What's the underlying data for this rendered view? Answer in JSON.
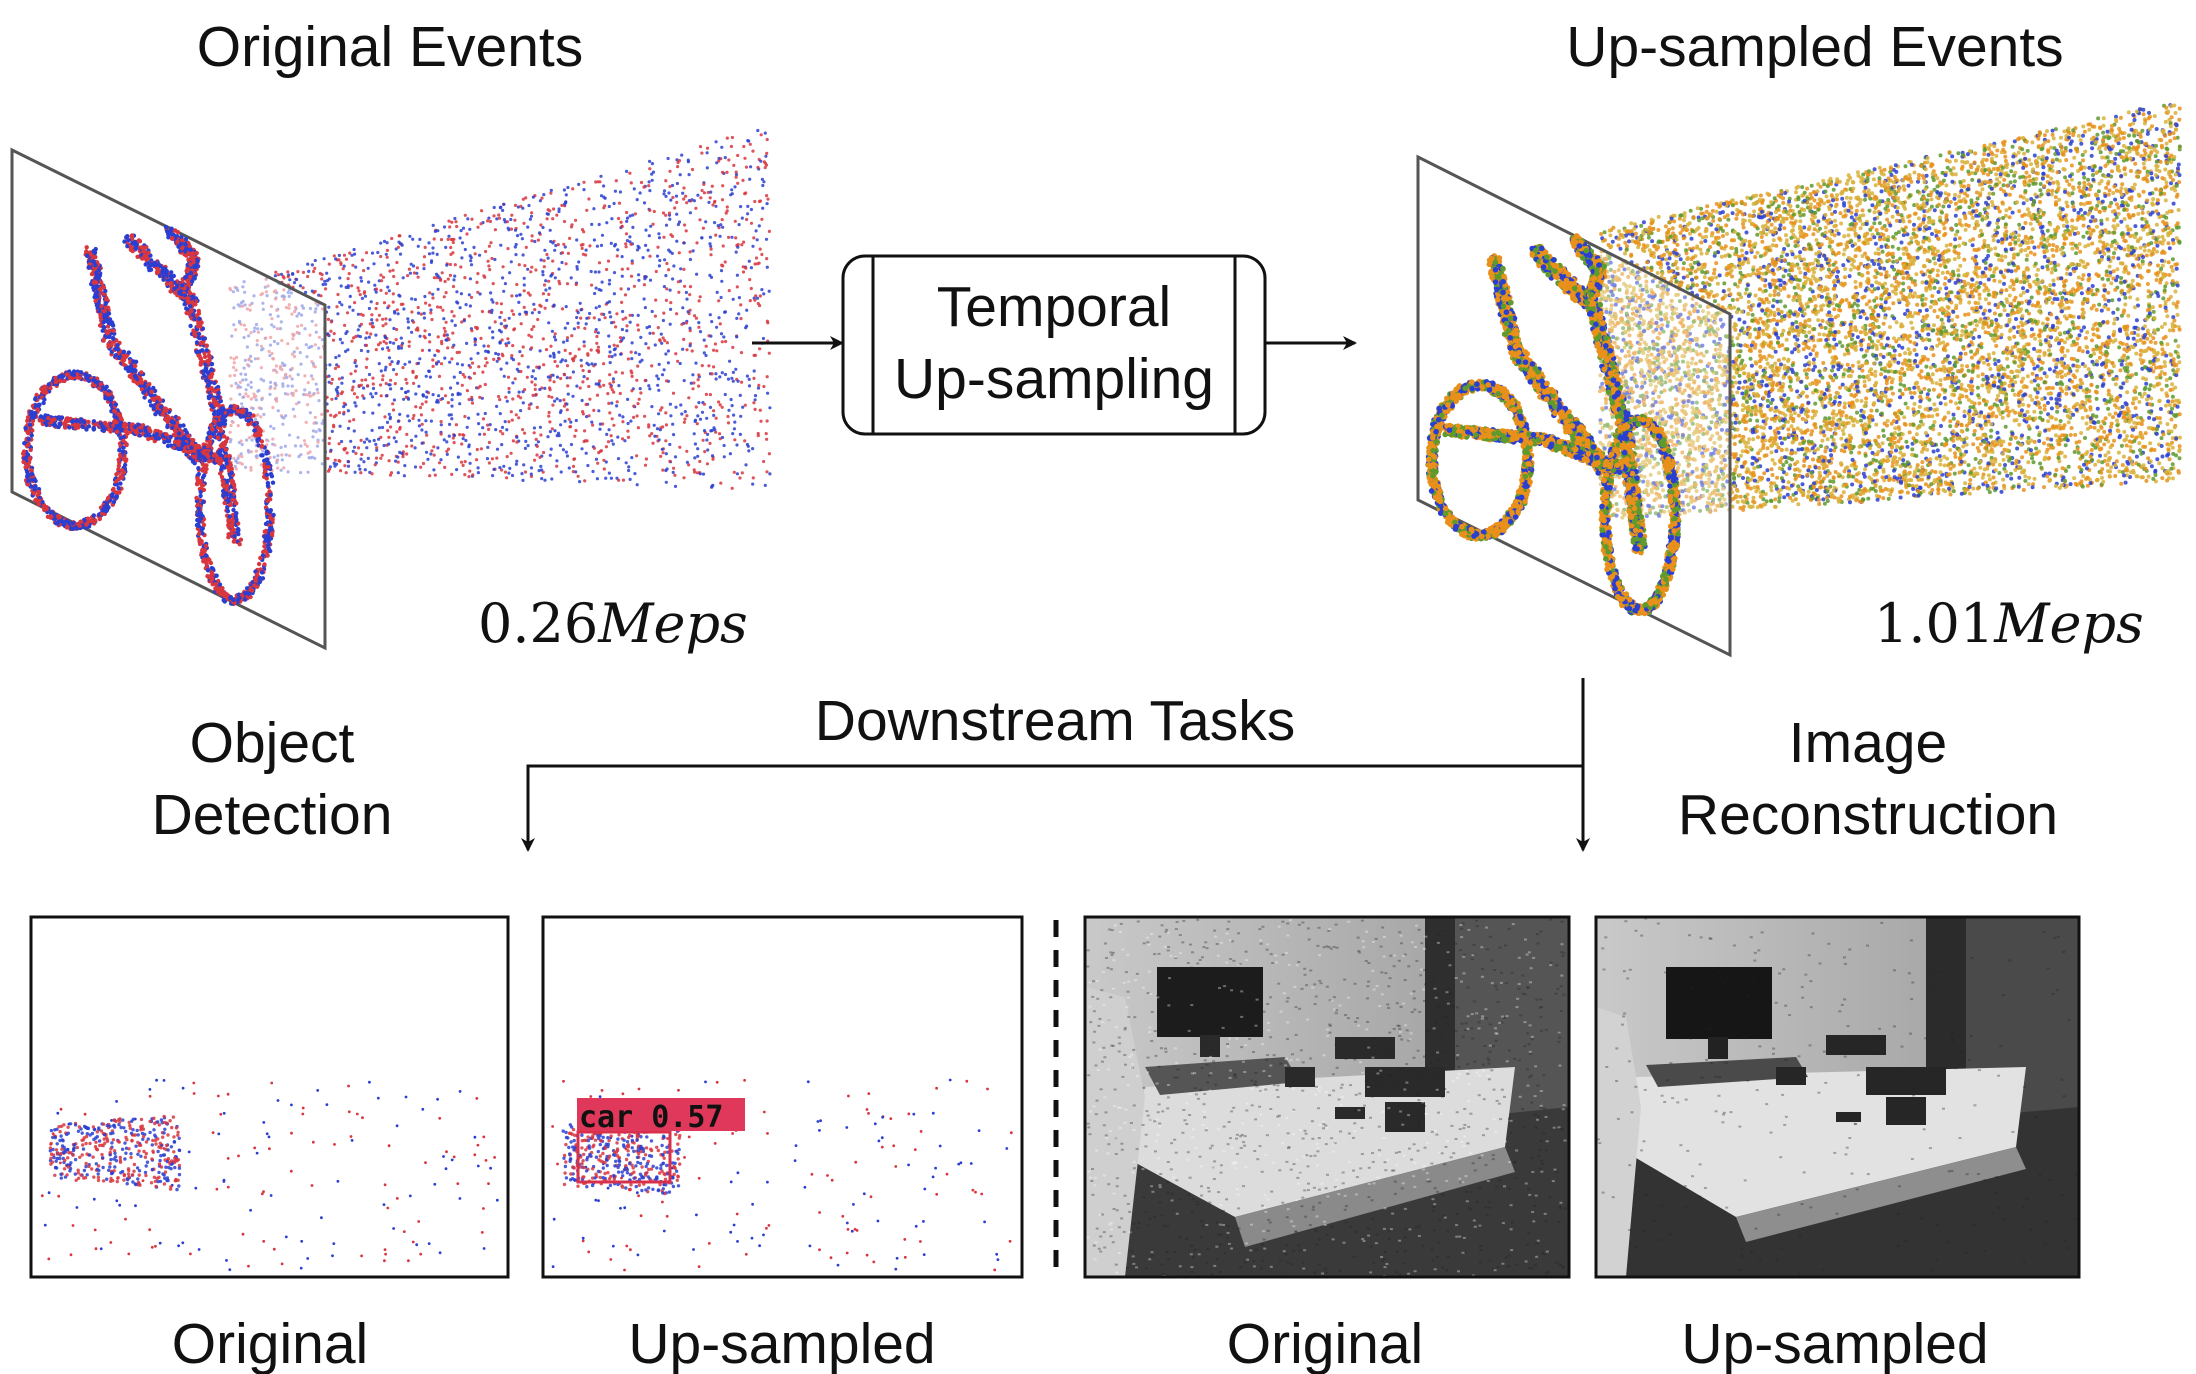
{
  "titles": {
    "original_events": "Original Events",
    "upsampled_events": "Up-sampled Events",
    "process_line1": "Temporal",
    "process_line2": "Up-sampling",
    "downstream": "Downstream Tasks",
    "object_line1": "Object",
    "object_line2": "Detection",
    "image_line1": "Image",
    "image_line2": "Reconstruction"
  },
  "rates": {
    "original": "0.26",
    "original_unit": "Meps",
    "upsampled": "1.01",
    "upsampled_unit": "Meps"
  },
  "detection": {
    "label": "car 0.57"
  },
  "captions": [
    "Original",
    "Up-sampled",
    "Original",
    "Up-sampled"
  ],
  "colors": {
    "pos_event": "#d9363e",
    "neg_event": "#2a3fd1",
    "up_orange": "#e8901a",
    "up_green": "#5e9a2e",
    "up_yellow": "#d8b23a",
    "det_box": "#d8304a"
  }
}
